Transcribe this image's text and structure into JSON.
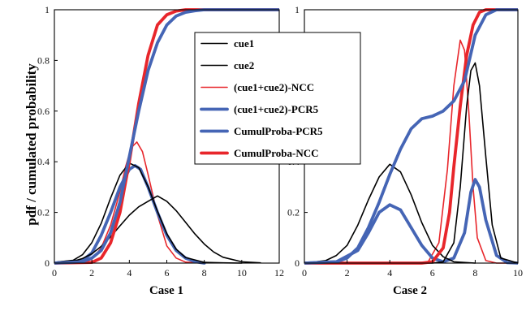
{
  "ylabel": "pdf / cumulated probability",
  "colors": {
    "black": "#000000",
    "red": "#e8262b",
    "blue": "#4565b5"
  },
  "chart_data": [
    {
      "type": "line",
      "xlabel": "Case 1",
      "xlim": [
        0,
        12
      ],
      "ylim": [
        0,
        1
      ],
      "x_ticks": [
        "0",
        "2",
        "4",
        "6",
        "8",
        "10",
        "12"
      ],
      "y_ticks": [
        "0",
        "0.2",
        "0.4",
        "0.6",
        "0.8",
        "1"
      ],
      "series": [
        {
          "name": "cue1",
          "color": "#000000",
          "width": 1.6,
          "x": [
            0,
            1,
            1.5,
            2,
            2.5,
            3,
            3.5,
            4,
            4.5,
            5,
            5.5,
            6,
            6.5,
            7,
            8,
            9,
            10
          ],
          "y": [
            0.003,
            0.011,
            0.033,
            0.081,
            0.157,
            0.257,
            0.347,
            0.395,
            0.377,
            0.302,
            0.204,
            0.116,
            0.055,
            0.022,
            0.003,
            0.001,
            0
          ]
        },
        {
          "name": "cue2",
          "color": "#000000",
          "width": 1.6,
          "x": [
            0,
            1,
            1.5,
            2,
            2.5,
            3,
            3.5,
            4,
            4.5,
            5,
            5.5,
            6,
            6.5,
            7,
            7.5,
            8,
            8.5,
            9,
            10,
            11
          ],
          "y": [
            0.001,
            0.007,
            0.018,
            0.037,
            0.066,
            0.104,
            0.147,
            0.189,
            0.222,
            0.244,
            0.265,
            0.244,
            0.207,
            0.161,
            0.115,
            0.075,
            0.044,
            0.023,
            0.005,
            0.001
          ]
        },
        {
          "name": "(cue1+cue2)-NCC",
          "color": "#e8262b",
          "width": 1.6,
          "x": [
            0,
            1.5,
            2,
            2.5,
            3,
            3.5,
            3.8,
            4.1,
            4.4,
            4.7,
            5,
            5.5,
            6,
            6.5,
            7,
            8
          ],
          "y": [
            0,
            0.002,
            0.015,
            0.06,
            0.15,
            0.282,
            0.38,
            0.455,
            0.478,
            0.44,
            0.35,
            0.19,
            0.068,
            0.02,
            0.004,
            0
          ]
        },
        {
          "name": "(cue1+cue2)-PCR5",
          "color": "#4565b5",
          "width": 3.8,
          "x": [
            0,
            1.5,
            2,
            2.5,
            3,
            3.5,
            4,
            4.3,
            4.6,
            5,
            5.5,
            6,
            6.5,
            7,
            7.5,
            8
          ],
          "y": [
            0,
            0.01,
            0.04,
            0.11,
            0.2,
            0.3,
            0.37,
            0.385,
            0.37,
            0.3,
            0.2,
            0.11,
            0.05,
            0.02,
            0.006,
            0
          ]
        },
        {
          "name": "CumulProba-PCR5",
          "color": "#4565b5",
          "width": 3.8,
          "x": [
            0,
            1.5,
            2,
            2.5,
            3,
            3.5,
            4,
            4.5,
            5,
            5.5,
            6,
            6.5,
            7,
            7.5,
            8,
            9,
            10,
            12
          ],
          "y": [
            0,
            0.005,
            0.02,
            0.05,
            0.12,
            0.24,
            0.42,
            0.6,
            0.76,
            0.87,
            0.94,
            0.975,
            0.99,
            0.996,
            1,
            1,
            1,
            1
          ]
        },
        {
          "name": "CumulProba-NCC",
          "color": "#e8262b",
          "width": 3.8,
          "x": [
            0,
            2,
            2.5,
            3,
            3.5,
            4,
            4.5,
            5,
            5.5,
            6,
            6.5,
            7,
            8,
            10,
            12
          ],
          "y": [
            0,
            0.003,
            0.02,
            0.08,
            0.2,
            0.4,
            0.63,
            0.82,
            0.94,
            0.98,
            0.995,
            1,
            1,
            1,
            1
          ]
        }
      ]
    },
    {
      "type": "line",
      "xlabel": "Case 2",
      "xlim": [
        0,
        10
      ],
      "ylim": [
        0,
        1
      ],
      "x_ticks": [
        "0",
        "2",
        "4",
        "6",
        "8",
        "10"
      ],
      "y_ticks": [
        "0",
        "0.2",
        "0.4",
        "0.6",
        "0.8",
        "1"
      ],
      "series": [
        {
          "name": "cue1",
          "color": "#000000",
          "width": 1.6,
          "x": [
            0,
            1,
            1.5,
            2,
            2.5,
            3,
            3.5,
            4,
            4.5,
            5,
            5.5,
            6,
            6.5,
            7,
            8
          ],
          "y": [
            0,
            0.01,
            0.03,
            0.07,
            0.15,
            0.25,
            0.34,
            0.39,
            0.36,
            0.27,
            0.16,
            0.07,
            0.025,
            0.005,
            0
          ]
        },
        {
          "name": "cue2",
          "color": "#000000",
          "width": 1.6,
          "x": [
            0,
            6,
            6.5,
            7,
            7.3,
            7.6,
            7.8,
            8,
            8.2,
            8.5,
            8.8,
            9.2,
            10
          ],
          "y": [
            0,
            0,
            0.005,
            0.08,
            0.3,
            0.62,
            0.76,
            0.79,
            0.7,
            0.42,
            0.15,
            0.02,
            0
          ]
        },
        {
          "name": "(cue1+cue2)-NCC",
          "color": "#e8262b",
          "width": 1.6,
          "x": [
            0,
            5,
            5.8,
            6.3,
            6.7,
            7,
            7.3,
            7.5,
            7.7,
            7.9,
            8.1,
            8.5,
            9,
            10
          ],
          "y": [
            0,
            0,
            0.005,
            0.08,
            0.37,
            0.7,
            0.88,
            0.84,
            0.6,
            0.3,
            0.1,
            0.01,
            0,
            0
          ]
        },
        {
          "name": "(cue1+cue2)-PCR5",
          "color": "#4565b5",
          "width": 3.8,
          "x": [
            0,
            1.5,
            2.5,
            3,
            3.5,
            4,
            4.5,
            5,
            5.5,
            6,
            6.5,
            7,
            7.5,
            7.8,
            8,
            8.2,
            8.5,
            9,
            9.5,
            10
          ],
          "y": [
            0,
            0.005,
            0.05,
            0.12,
            0.2,
            0.23,
            0.21,
            0.14,
            0.07,
            0.02,
            0.005,
            0.02,
            0.12,
            0.28,
            0.33,
            0.3,
            0.17,
            0.03,
            0.002,
            0
          ]
        },
        {
          "name": "CumulProba-PCR5",
          "color": "#4565b5",
          "width": 3.8,
          "x": [
            0,
            1.5,
            2,
            2.5,
            3,
            3.5,
            4,
            4.5,
            5,
            5.5,
            6,
            6.5,
            7,
            7.5,
            8,
            8.5,
            9,
            10
          ],
          "y": [
            0,
            0.005,
            0.02,
            0.06,
            0.14,
            0.24,
            0.35,
            0.45,
            0.53,
            0.57,
            0.58,
            0.6,
            0.64,
            0.72,
            0.9,
            0.98,
            1,
            1
          ]
        },
        {
          "name": "CumulProba-NCC",
          "color": "#e8262b",
          "width": 3.8,
          "x": [
            0,
            5.5,
            6,
            6.5,
            6.8,
            7,
            7.3,
            7.6,
            7.9,
            8.2,
            8.5,
            10
          ],
          "y": [
            0,
            0,
            0.005,
            0.06,
            0.2,
            0.38,
            0.62,
            0.82,
            0.94,
            0.99,
            1,
            1
          ]
        }
      ]
    }
  ],
  "legend": {
    "entries": [
      {
        "label": "cue1",
        "color": "#000000",
        "width": 1.6
      },
      {
        "label": "cue2",
        "color": "#000000",
        "width": 1.6
      },
      {
        "label": "(cue1+cue2)-NCC",
        "color": "#e8262b",
        "width": 1.6
      },
      {
        "label": "(cue1+cue2)-PCR5",
        "color": "#4565b5",
        "width": 3.8
      },
      {
        "label": "CumulProba-PCR5",
        "color": "#4565b5",
        "width": 3.8
      },
      {
        "label": "CumulProba-NCC",
        "color": "#e8262b",
        "width": 3.8
      }
    ]
  }
}
